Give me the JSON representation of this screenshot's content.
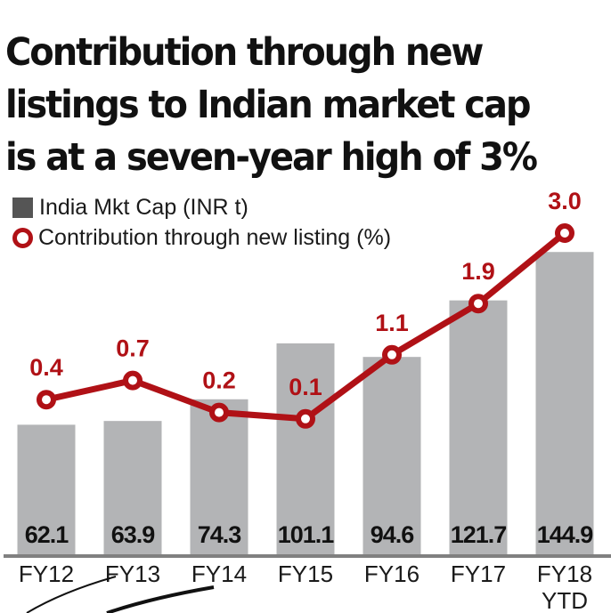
{
  "title": "Contribution through new listings to Indian market cap is at a seven-year high of 3%",
  "legend": {
    "bar_label": "India Mkt Cap (INR t)",
    "line_label": "Contribution through new listing (%)"
  },
  "colors": {
    "bar": "#b3b4b6",
    "line": "#b01116",
    "axis": "#808080",
    "legend_bar": "#555555"
  },
  "chart_data": {
    "type": "bar",
    "title": "Contribution through new listings to Indian market cap is at a seven-year high of 3%",
    "xlabel": "",
    "ylabel": "",
    "grid": false,
    "legend_position": "top-left",
    "categories": [
      "FY12",
      "FY13",
      "FY14",
      "FY15",
      "FY16",
      "FY17",
      "FY18 YTD"
    ],
    "category_lines": [
      [
        "FY12"
      ],
      [
        "FY13"
      ],
      [
        "FY14"
      ],
      [
        "FY15"
      ],
      [
        "FY16"
      ],
      [
        "FY17"
      ],
      [
        "FY18",
        "YTD"
      ]
    ],
    "series": [
      {
        "name": "India Mkt Cap (INR t)",
        "type": "bar",
        "values": [
          62.1,
          63.9,
          74.3,
          101.1,
          94.6,
          121.7,
          144.9
        ],
        "labels": [
          "62.1",
          "63.9",
          "74.3",
          "101.1",
          "94.6",
          "121.7",
          "144.9"
        ]
      },
      {
        "name": "Contribution through new listing (%)",
        "type": "line",
        "values": [
          0.4,
          0.7,
          0.2,
          0.1,
          1.1,
          1.9,
          3.0
        ],
        "labels": [
          "0.4",
          "0.7",
          "0.2",
          "0.1",
          "1.1",
          "1.9",
          "3.0"
        ]
      }
    ],
    "bar_ylim": [
      0,
      145
    ],
    "line_ylim": [
      0,
      3.0
    ]
  }
}
